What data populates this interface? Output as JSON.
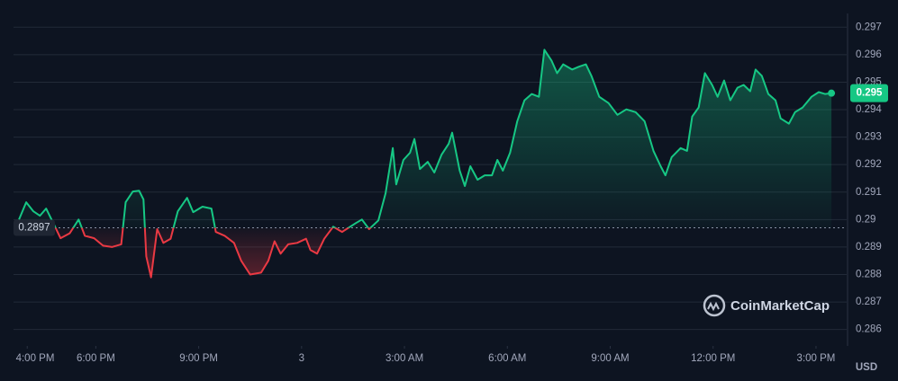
{
  "chart_data": {
    "type": "line",
    "color": "#16c784",
    "down_color": "#ea3943",
    "x": [
      15.76,
      15.97,
      16.18,
      16.37,
      16.55,
      16.76,
      16.97,
      17.24,
      17.5,
      17.68,
      17.95,
      18.21,
      18.47,
      18.74,
      18.87,
      19.08,
      19.26,
      19.39,
      19.47,
      19.61,
      19.79,
      19.97,
      20.18,
      20.39,
      20.66,
      20.84,
      21.11,
      21.37,
      21.5,
      21.76,
      22.03,
      22.24,
      22.5,
      22.82,
      23.03,
      23.21,
      23.39,
      23.61,
      23.87,
      24.13,
      24.26,
      24.45,
      24.66,
      24.92,
      25.18,
      25.58,
      25.76,
      25.97,
      26.24,
      26.45,
      26.66,
      26.76,
      26.97,
      27.16,
      27.29,
      27.45,
      27.68,
      27.87,
      28.08,
      28.29,
      28.39,
      28.61,
      28.76,
      28.92,
      29.13,
      29.34,
      29.55,
      29.71,
      29.87,
      30.08,
      30.29,
      30.5,
      30.71,
      30.92,
      31.08,
      31.29,
      31.45,
      31.63,
      31.89,
      32.08,
      32.29,
      32.45,
      32.68,
      32.95,
      33.21,
      33.47,
      33.74,
      34,
      34.26,
      34.47,
      34.61,
      34.79,
      35.05,
      35.24,
      35.39,
      35.58,
      35.76,
      35.97,
      36.13,
      36.32,
      36.5,
      36.71,
      36.89,
      37.08,
      37.24,
      37.42,
      37.61,
      37.82,
      37.97,
      38.21,
      38.39,
      38.61,
      38.87,
      39.08,
      39.26,
      39.45
    ],
    "values": [
      0.29,
      0.29063,
      0.2903,
      0.29014,
      0.2904,
      0.28987,
      0.28932,
      0.2895,
      0.29,
      0.28941,
      0.28932,
      0.28905,
      0.289,
      0.2891,
      0.29063,
      0.29102,
      0.29105,
      0.29073,
      0.28866,
      0.2879,
      0.28965,
      0.28915,
      0.2893,
      0.2903,
      0.29079,
      0.29027,
      0.29047,
      0.2904,
      0.28955,
      0.28941,
      0.28915,
      0.2885,
      0.288,
      0.28807,
      0.2885,
      0.28921,
      0.28876,
      0.2891,
      0.28915,
      0.2893,
      0.28889,
      0.28876,
      0.2893,
      0.28974,
      0.28955,
      0.28987,
      0.29,
      0.28965,
      0.28997,
      0.29096,
      0.2926,
      0.29128,
      0.29217,
      0.29243,
      0.29293,
      0.29184,
      0.2921,
      0.29171,
      0.29236,
      0.29276,
      0.29316,
      0.29178,
      0.29122,
      0.29194,
      0.29145,
      0.29161,
      0.29161,
      0.29217,
      0.29178,
      0.29243,
      0.29358,
      0.29434,
      0.29457,
      0.29447,
      0.29618,
      0.29578,
      0.29533,
      0.29565,
      0.29546,
      0.29556,
      0.29565,
      0.29523,
      0.29447,
      0.29424,
      0.29381,
      0.29401,
      0.29391,
      0.29358,
      0.2925,
      0.29194,
      0.29161,
      0.29227,
      0.2926,
      0.2925,
      0.29375,
      0.29408,
      0.29533,
      0.2949,
      0.29447,
      0.29506,
      0.29434,
      0.2948,
      0.2949,
      0.29467,
      0.29546,
      0.29523,
      0.29457,
      0.29434,
      0.29368,
      0.29349,
      0.29391,
      0.29408,
      0.29447,
      0.29464,
      0.29457,
      0.2946
    ],
    "xlim": [
      15.6,
      39.5
    ],
    "xticks": [
      {
        "value": 16,
        "label": "4:00 PM"
      },
      {
        "value": 18,
        "label": "6:00 PM"
      },
      {
        "value": 21,
        "label": "9:00 PM"
      },
      {
        "value": 24,
        "label": "3"
      },
      {
        "value": 27,
        "label": "3:00 AM"
      },
      {
        "value": 30,
        "label": "6:00 AM"
      },
      {
        "value": 33,
        "label": "9:00 AM"
      },
      {
        "value": 36,
        "label": "12:00 PM"
      },
      {
        "value": 39,
        "label": "3:00 PM"
      }
    ],
    "ylim": [
      0.2854,
      0.2975
    ],
    "yticks": [
      0.286,
      0.287,
      0.288,
      0.289,
      0.29,
      0.291,
      0.292,
      0.293,
      0.294,
      0.295,
      0.296,
      0.297
    ],
    "grid": true,
    "baseline": {
      "value": 0.2897,
      "label": "0.2897"
    },
    "current_label": "0.295",
    "y_unit": "USD",
    "watermark": "CoinMarketCap"
  }
}
